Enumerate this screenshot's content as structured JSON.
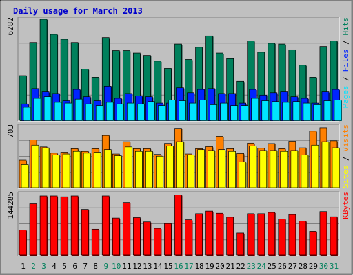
{
  "chart_data": [
    {
      "type": "bar",
      "panel": "pages-files-hits",
      "title": "Daily usage for March 2013",
      "categories": [
        "1",
        "2",
        "3",
        "4",
        "5",
        "6",
        "7",
        "8",
        "9",
        "10",
        "11",
        "12",
        "13",
        "14",
        "15",
        "16",
        "17",
        "18",
        "19",
        "20",
        "21",
        "22",
        "23",
        "24",
        "25",
        "26",
        "27",
        "28",
        "29",
        "30",
        "31"
      ],
      "ylabel_parts": [
        "Pages",
        "Files",
        "Hits"
      ],
      "ymax": 6282,
      "ymax_label": "6282",
      "series": [
        {
          "name": "Hits",
          "color": "#00805c",
          "values": [
            2800,
            4850,
            6282,
            5350,
            5050,
            4850,
            3200,
            2700,
            5150,
            4350,
            4350,
            4200,
            4050,
            3700,
            3250,
            4750,
            3800,
            4550,
            5250,
            4200,
            3850,
            2450,
            4950,
            4250,
            4800,
            4750,
            4400,
            3450,
            2700,
            4600,
            4950
          ]
        },
        {
          "name": "Files",
          "color": "#0024ff",
          "values": [
            1050,
            2000,
            1800,
            1700,
            1250,
            1950,
            1500,
            1250,
            2150,
            1400,
            1700,
            1550,
            1500,
            1100,
            1100,
            2050,
            1750,
            1950,
            2000,
            1700,
            1700,
            1100,
            1950,
            1600,
            1750,
            1800,
            1500,
            1400,
            1100,
            1800,
            1950
          ]
        },
        {
          "name": "Pages",
          "color": "#00e4ff",
          "values": [
            850,
            1400,
            1500,
            1150,
            1100,
            1350,
            1050,
            950,
            1150,
            1050,
            1100,
            1050,
            1200,
            950,
            1300,
            1250,
            1100,
            1300,
            1000,
            1100,
            950,
            950,
            1400,
            1250,
            1200,
            1150,
            1200,
            1100,
            1000,
            1250,
            1300
          ]
        }
      ]
    },
    {
      "type": "bar",
      "panel": "sites-visits",
      "categories": [
        "1",
        "2",
        "3",
        "4",
        "5",
        "6",
        "7",
        "8",
        "9",
        "10",
        "11",
        "12",
        "13",
        "14",
        "15",
        "16",
        "17",
        "18",
        "19",
        "20",
        "21",
        "22",
        "23",
        "24",
        "25",
        "26",
        "27",
        "28",
        "29",
        "30",
        "31"
      ],
      "ylabel_parts": [
        "Sites",
        "Visits"
      ],
      "ymax": 703,
      "ymax_label": "703",
      "series": [
        {
          "name": "Visits",
          "color": "#ff8000",
          "values": [
            320,
            550,
            470,
            400,
            410,
            450,
            420,
            450,
            600,
            390,
            530,
            450,
            450,
            385,
            510,
            682,
            390,
            450,
            473,
            590,
            450,
            395,
            513,
            455,
            508,
            450,
            535,
            460,
            650,
            688,
            540
          ]
        },
        {
          "name": "Sites",
          "color": "#ffff00",
          "values": [
            270,
            490,
            460,
            380,
            390,
            420,
            400,
            410,
            440,
            370,
            470,
            420,
            420,
            365,
            480,
            530,
            380,
            440,
            430,
            440,
            420,
            300,
            480,
            430,
            430,
            420,
            430,
            380,
            490,
            530,
            460
          ]
        }
      ]
    },
    {
      "type": "bar",
      "panel": "kbytes",
      "categories": [
        "1",
        "2",
        "3",
        "4",
        "5",
        "6",
        "7",
        "8",
        "9",
        "10",
        "11",
        "12",
        "13",
        "14",
        "15",
        "16",
        "17",
        "18",
        "19",
        "20",
        "21",
        "22",
        "23",
        "24",
        "25",
        "26",
        "27",
        "28",
        "29",
        "30",
        "31"
      ],
      "ylabel_parts": [
        "KBytes"
      ],
      "ymax": 144285,
      "ymax_label": "144285",
      "series": [
        {
          "name": "KBytes",
          "color": "#ff0000",
          "values": [
            60000,
            121000,
            139500,
            139500,
            137500,
            139500,
            108000,
            62000,
            139500,
            88000,
            124000,
            89000,
            79000,
            64000,
            75000,
            142000,
            84000,
            98000,
            104000,
            99000,
            90000,
            53000,
            98000,
            98000,
            101000,
            86000,
            96000,
            81000,
            57000,
            103000,
            91000
          ]
        }
      ]
    }
  ],
  "weekend_days": [
    "2",
    "3",
    "9",
    "10",
    "16",
    "17",
    "23",
    "24",
    "30",
    "31"
  ],
  "colors": {
    "day_default": "#000000",
    "day_weekend": "#00805c",
    "frame": "#bebebe"
  }
}
